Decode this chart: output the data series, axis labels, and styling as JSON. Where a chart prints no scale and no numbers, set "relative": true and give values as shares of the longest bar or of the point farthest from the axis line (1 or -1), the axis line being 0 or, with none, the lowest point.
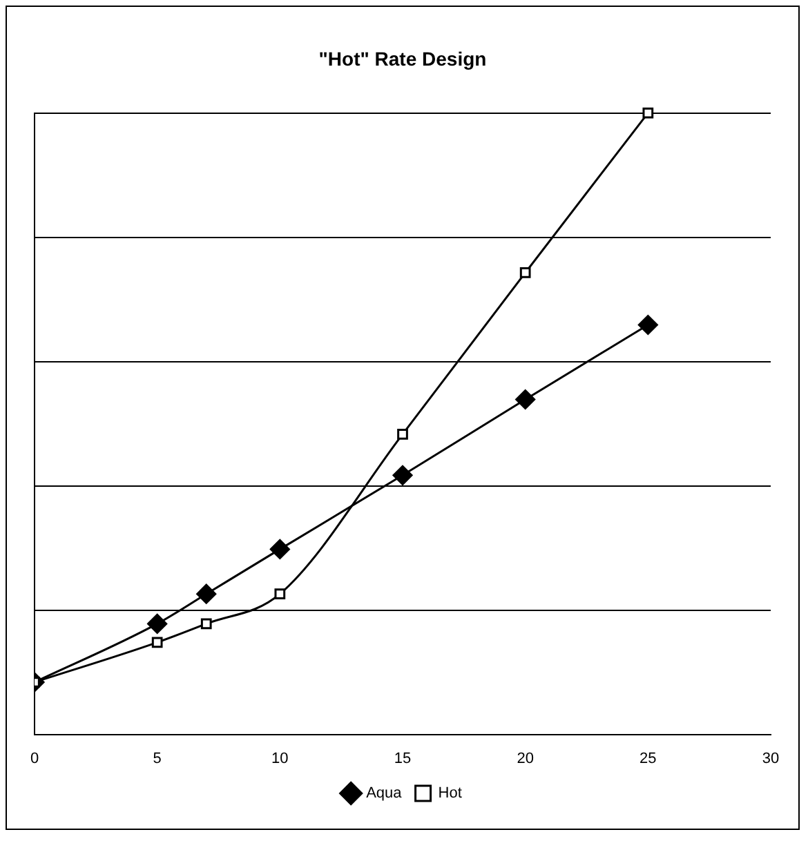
{
  "chart_data": {
    "type": "line",
    "title": "\"Hot\" Rate Design",
    "relative": true,
    "x": [
      0,
      5,
      7,
      10,
      15,
      20,
      25
    ],
    "xlim": [
      0,
      30
    ],
    "xticks": [
      0,
      5,
      10,
      15,
      20,
      25,
      30
    ],
    "grid": "y",
    "legend": "bottom",
    "tick_labels": "x",
    "series": [
      {
        "name": "Aqua",
        "color": "#000000",
        "marker": "diamond",
        "values": [
          0.084,
          0.178,
          0.226,
          0.298,
          0.417,
          0.539,
          0.659
        ]
      },
      {
        "name": "Hot",
        "color": "#000000",
        "marker": "square",
        "values": [
          0.084,
          0.148,
          0.178,
          0.226,
          0.483,
          0.743,
          1
        ]
      }
    ]
  }
}
